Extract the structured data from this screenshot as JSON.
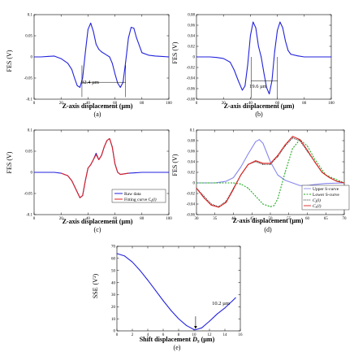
{
  "panels": [
    {
      "id": "a",
      "caption": "(a)",
      "type": "line",
      "xlabel": "Z-axis displacement (µm)",
      "ylabel": "FES (V)",
      "xlim": [
        0,
        100
      ],
      "ylim": [
        -0.1,
        0.1
      ],
      "xticks": [
        "0",
        "20",
        "40",
        "60",
        "80",
        "100"
      ],
      "yticks": [
        "-0.1",
        "-0.05",
        "0",
        "0.05",
        "0.1"
      ],
      "annotation": "32.4 µm",
      "series": [
        {
          "color": "#2222dd",
          "x": [
            0,
            5,
            10,
            15,
            20,
            25,
            28,
            30,
            32,
            34,
            36,
            38,
            40,
            42,
            44,
            46,
            48,
            50,
            52,
            54,
            56,
            58,
            60,
            62,
            64,
            66,
            68,
            70,
            72,
            74,
            76,
            80,
            85,
            90,
            95,
            100
          ],
          "y": [
            0,
            0,
            0.001,
            0.002,
            -0.004,
            -0.015,
            -0.03,
            -0.05,
            -0.068,
            -0.072,
            -0.05,
            0.01,
            0.065,
            0.08,
            0.06,
            0.03,
            0.018,
            0.012,
            0.008,
            0.004,
            0,
            -0.015,
            -0.04,
            -0.062,
            -0.072,
            -0.06,
            -0.01,
            0.045,
            0.07,
            0.068,
            0.045,
            0.01,
            0.004,
            0.002,
            0.001,
            0
          ]
        }
      ]
    },
    {
      "id": "b",
      "caption": "(b)",
      "type": "line",
      "xlabel": "Z-axis displacement (µm)",
      "ylabel": "FES (V)",
      "xlim": [
        0,
        100
      ],
      "ylim": [
        -0.08,
        0.08
      ],
      "xticks": [
        "0",
        "20",
        "40",
        "60",
        "80",
        "100"
      ],
      "yticks": [
        "-0.08",
        "-0.06",
        "-0.04",
        "-0.02",
        "0",
        "0.02",
        "0.04",
        "0.06",
        "0.08"
      ],
      "annotation": "19.6 µm",
      "series": [
        {
          "color": "#2222dd",
          "x": [
            0,
            5,
            10,
            15,
            20,
            25,
            28,
            31,
            34,
            36,
            38,
            40,
            42,
            44,
            46,
            48,
            50,
            52,
            54,
            56,
            58,
            60,
            62,
            64,
            66,
            68,
            70,
            75,
            80,
            85,
            90,
            95,
            100
          ],
          "y": [
            0,
            0,
            0,
            -0.001,
            -0.003,
            -0.01,
            -0.025,
            -0.045,
            -0.063,
            -0.055,
            -0.015,
            0.04,
            0.066,
            0.055,
            0.02,
            0,
            -0.03,
            -0.058,
            -0.07,
            -0.045,
            0.01,
            0.05,
            0.066,
            0.055,
            0.03,
            0.012,
            0.005,
            0.002,
            0,
            0,
            0,
            0,
            0
          ]
        }
      ]
    },
    {
      "id": "c",
      "caption": "(c)",
      "type": "line",
      "xlabel": "Z-axis displacement (µm)",
      "ylabel": "FES (V)",
      "xlim": [
        0,
        100
      ],
      "ylim": [
        -0.1,
        0.1
      ],
      "xticks": [
        "0",
        "20",
        "40",
        "60",
        "80",
        "100"
      ],
      "yticks": [
        "-0.1",
        "-0.05",
        "0",
        "0.05",
        "0.1"
      ],
      "legend": [
        "Raw data",
        "Fitting curve C_f(l)"
      ],
      "series": [
        {
          "name": "Raw data",
          "color": "#2222dd",
          "x": [
            0,
            5,
            10,
            15,
            20,
            25,
            28,
            31,
            34,
            36,
            38,
            40,
            42,
            44,
            46,
            48,
            50,
            52,
            54,
            56,
            58,
            60,
            62,
            64,
            66,
            70,
            75,
            80,
            85,
            90,
            95,
            100
          ],
          "y": [
            0,
            0,
            0,
            0,
            -0.002,
            -0.008,
            -0.02,
            -0.04,
            -0.06,
            -0.055,
            -0.02,
            0.01,
            0.018,
            0.03,
            0.045,
            0.03,
            0.04,
            0.06,
            0.075,
            0.08,
            0.06,
            0.02,
            0,
            -0.005,
            -0.004,
            -0.002,
            -0.001,
            0,
            0,
            0,
            0,
            0
          ]
        },
        {
          "name": "Fitting curve C_f(l)",
          "color": "#dd2222",
          "x": [
            20,
            25,
            28,
            31,
            34,
            36,
            38,
            40,
            42,
            44,
            46,
            48,
            50,
            52,
            54,
            56,
            58,
            60,
            62,
            64,
            66,
            70
          ],
          "y": [
            -0.002,
            -0.008,
            -0.02,
            -0.04,
            -0.06,
            -0.055,
            -0.02,
            0.01,
            0.018,
            0.03,
            0.042,
            0.03,
            0.04,
            0.06,
            0.075,
            0.08,
            0.06,
            0.02,
            0,
            -0.005,
            -0.004,
            -0.002
          ]
        }
      ]
    },
    {
      "id": "d",
      "caption": "(d)",
      "type": "line",
      "xlabel": "Z-axis displacement (µm)",
      "ylabel": "FES (V)",
      "xlim": [
        30,
        70
      ],
      "ylim": [
        -0.06,
        0.1
      ],
      "xticks": [
        "30",
        "35",
        "40",
        "45",
        "50",
        "55",
        "60",
        "65",
        "70"
      ],
      "yticks": [
        "-0.06",
        "-0.04",
        "-0.02",
        "0",
        "0.02",
        "0.04",
        "0.06",
        "0.08",
        "0.1"
      ],
      "legend": [
        "Upper S-curve",
        "Lower S-curve",
        "C_f(l)",
        "C_r(l)"
      ],
      "series": [
        {
          "name": "Upper S-curve",
          "color": "#8888ee",
          "dash": "",
          "x": [
            30,
            35,
            38,
            40,
            42,
            44,
            46,
            47,
            48,
            50,
            52,
            54,
            56,
            58,
            60,
            62,
            65,
            70
          ],
          "y": [
            0,
            0,
            0.003,
            0.01,
            0.03,
            0.055,
            0.078,
            0.082,
            0.075,
            0.04,
            0.015,
            0.005,
            0,
            -0.005,
            -0.005,
            -0.003,
            -0.001,
            0
          ]
        },
        {
          "name": "Lower S-curve",
          "color": "#22aa22",
          "dash": "2,1.5",
          "x": [
            30,
            35,
            38,
            40,
            42,
            44,
            46,
            48,
            50,
            51,
            52,
            54,
            56,
            58,
            60,
            62,
            65,
            70
          ],
          "y": [
            0,
            0,
            0,
            0,
            -0.002,
            -0.01,
            -0.025,
            -0.04,
            -0.045,
            -0.043,
            -0.03,
            0.02,
            0.065,
            0.082,
            0.07,
            0.045,
            0.015,
            0
          ]
        },
        {
          "name": "C_f(l)",
          "color": "#222222",
          "dash": "1,1.2",
          "x": [
            30,
            32,
            34,
            36,
            38,
            40,
            42,
            44,
            46,
            48,
            50,
            52,
            54,
            56,
            58,
            60,
            62,
            64,
            66,
            68,
            70
          ],
          "y": [
            -0.01,
            -0.025,
            -0.04,
            -0.045,
            -0.035,
            -0.01,
            0.015,
            0.035,
            0.04,
            0.035,
            0.035,
            0.05,
            0.07,
            0.085,
            0.08,
            0.06,
            0.04,
            0.02,
            0.01,
            0.003,
            0
          ]
        },
        {
          "name": "C_r(l)",
          "color": "#dd2222",
          "dash": "",
          "x": [
            30,
            32,
            34,
            36,
            38,
            40,
            42,
            44,
            46,
            48,
            50,
            52,
            54,
            56,
            58,
            60,
            62,
            64,
            66,
            68,
            70
          ],
          "y": [
            -0.01,
            -0.028,
            -0.042,
            -0.046,
            -0.037,
            -0.012,
            0.015,
            0.035,
            0.042,
            0.037,
            0.037,
            0.052,
            0.072,
            0.088,
            0.082,
            0.062,
            0.04,
            0.02,
            0.01,
            0.003,
            0
          ]
        }
      ]
    },
    {
      "id": "e",
      "caption": "(e)",
      "type": "line",
      "xlabel": "Shift displacement D_S (µm)",
      "ylabel": "SSE (V²)",
      "xlim": [
        0,
        16
      ],
      "ylim": [
        0,
        70
      ],
      "xticks": [
        "0",
        "2",
        "4",
        "6",
        "8",
        "10",
        "12",
        "14",
        "16"
      ],
      "yticks": [
        "0",
        "10",
        "20",
        "30",
        "40",
        "50",
        "60",
        "70"
      ],
      "annotation": "10.2 µm",
      "series": [
        {
          "color": "#2222dd",
          "x": [
            0,
            1,
            2,
            3,
            4,
            5,
            6,
            7,
            8,
            9,
            10,
            10.2,
            11,
            12,
            13,
            14,
            15,
            15.4
          ],
          "y": [
            64,
            62,
            57,
            50,
            42,
            33.5,
            25,
            17,
            10,
            4.5,
            1,
            0.9,
            2.5,
            8,
            14,
            19,
            25,
            27.5
          ]
        }
      ]
    }
  ],
  "labels": {
    "fes": "FES (V)",
    "zaxis": "Z-axis displacement (µm)",
    "sse": "SSE",
    "sse_unit": "(V²)",
    "shift": "Shift displacement",
    "ds_sym": "D",
    "ds_sub": "S",
    "um": "(µm)",
    "ann_a": "32.4 µm",
    "ann_b": "19.6 µm",
    "ann_e": "10.2 µm",
    "leg_c1": "Raw data",
    "leg_c2_pre": "Fitting curve C",
    "leg_c2_sub": "f",
    "leg_c2_post": "(l)",
    "leg_d1": "Upper S-curve",
    "leg_d2": "Lower S-curve",
    "leg_d3_pre": "C",
    "leg_d3_sub": "f",
    "leg_d3_post": "(l)",
    "leg_d4_pre": "C",
    "leg_d4_sub": "r",
    "leg_d4_post": "(l)",
    "cap_a": "(a)",
    "cap_b": "(b)",
    "cap_c": "(c)",
    "cap_d": "(d)",
    "cap_e": "(e)"
  }
}
